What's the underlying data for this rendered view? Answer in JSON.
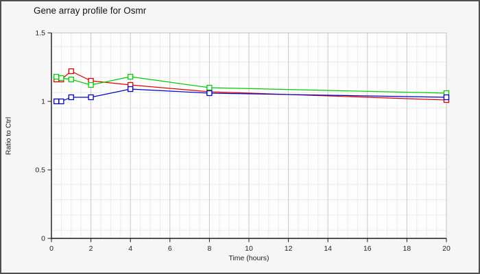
{
  "chart_data": {
    "type": "line",
    "title": "Gene array profile for Osmr",
    "xlabel": "Time (hours)",
    "ylabel": "Ratio to Ctrl",
    "x": [
      0.25,
      0.5,
      1,
      2,
      4,
      8,
      20
    ],
    "series": [
      {
        "name": "red",
        "color": "#dd0000",
        "values": [
          1.16,
          1.16,
          1.22,
          1.15,
          1.12,
          1.07,
          1.01
        ]
      },
      {
        "name": "green",
        "color": "#00cc00",
        "values": [
          1.18,
          1.17,
          1.16,
          1.12,
          1.18,
          1.1,
          1.06
        ]
      },
      {
        "name": "blue",
        "color": "#0000cc",
        "values": [
          1.0,
          1.0,
          1.03,
          1.03,
          1.09,
          1.06,
          1.03
        ]
      }
    ],
    "xlim": [
      0,
      20
    ],
    "ylim": [
      0,
      1.5
    ],
    "x_ticks": [
      0,
      2,
      4,
      6,
      8,
      10,
      12,
      14,
      16,
      18,
      20
    ],
    "y_ticks": [
      1.5,
      1,
      0.5,
      0
    ],
    "y_tick_labels": [
      "1.5",
      "1",
      "0.5",
      "0"
    ],
    "legend": "none",
    "grid": "minor vertical every 0.5h, major vertical every 2h, light horizontal rules",
    "marker": "open-square"
  },
  "colors": {
    "window_bg": "#f6f6f6",
    "plot_bg": "#fdfdfd",
    "border": "#4f4f4f",
    "axis": "#1a1a1a",
    "text": "#222222",
    "grid_minor": "#ececec",
    "grid_major": "#c9c9c9",
    "frame": "#c2c2c2",
    "marker_fill": "#ffffff"
  }
}
